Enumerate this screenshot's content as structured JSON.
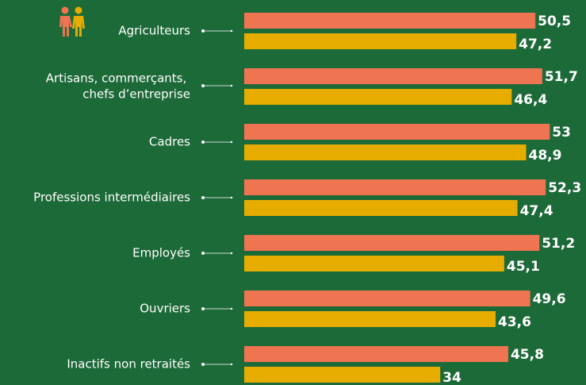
{
  "chart_data": {
    "type": "hbar",
    "categories": [
      "Agriculteurs",
      "Artisans, commerçants, chefs d’entreprise",
      "Cadres",
      "Professions intermédiaires",
      "Employés",
      "Ouvriers",
      "Inactifs non retraités"
    ],
    "series": [
      {
        "color": "#ef7452",
        "values": [
          50.5,
          51.7,
          53,
          52.3,
          51.2,
          49.6,
          45.8
        ],
        "value_labels": [
          "50,5",
          "51,7",
          "53",
          "52,3",
          "51,2",
          "49,6",
          "45,8"
        ]
      },
      {
        "color": "#e6ad00",
        "values": [
          47.2,
          46.4,
          48.9,
          47.4,
          45.1,
          43.6,
          34
        ],
        "value_labels": [
          "47,2",
          "46,4",
          "48,9",
          "47,4",
          "45,1",
          "43,6",
          "34"
        ]
      }
    ]
  }
}
